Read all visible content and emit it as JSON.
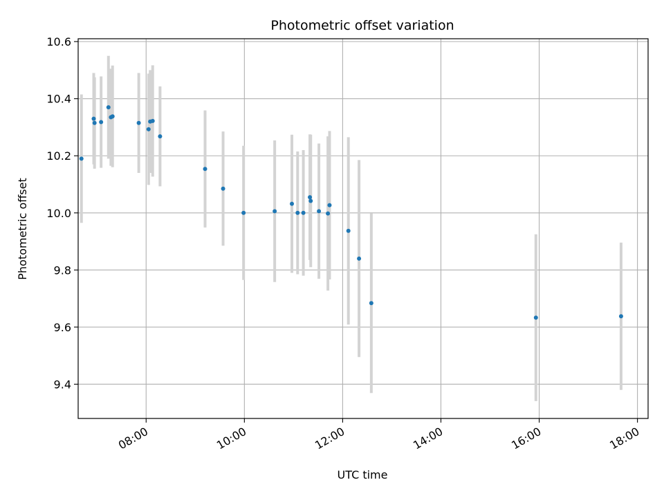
{
  "chart_data": {
    "type": "scatter",
    "title": "Photometric offset variation",
    "xlabel": "UTC time",
    "ylabel": "Photometric offset",
    "xlim": [
      "06:37",
      "18:13"
    ],
    "ylim": [
      9.28,
      10.61
    ],
    "x_ticks": [
      "08:00",
      "10:00",
      "12:00",
      "14:00",
      "16:00",
      "18:00"
    ],
    "y_ticks": [
      "9.4",
      "9.6",
      "9.8",
      "10.0",
      "10.2",
      "10.4",
      "10.6"
    ],
    "grid": true,
    "colors": {
      "point": "#1f77b4",
      "errorbar": "#d3d3d3",
      "grid": "#b0b0b0"
    },
    "points": [
      {
        "x": "06:41",
        "y": 10.19,
        "err": 0.225
      },
      {
        "x": "06:56",
        "y": 10.33,
        "err": 0.16
      },
      {
        "x": "06:57",
        "y": 10.315,
        "err": 0.16
      },
      {
        "x": "07:05",
        "y": 10.318,
        "err": 0.16
      },
      {
        "x": "07:14",
        "y": 10.37,
        "err": 0.18
      },
      {
        "x": "07:17",
        "y": 10.335,
        "err": 0.17
      },
      {
        "x": "07:19",
        "y": 10.338,
        "err": 0.178
      },
      {
        "x": "07:51",
        "y": 10.315,
        "err": 0.175
      },
      {
        "x": "08:03",
        "y": 10.293,
        "err": 0.195
      },
      {
        "x": "08:05",
        "y": 10.32,
        "err": 0.18
      },
      {
        "x": "08:08",
        "y": 10.322,
        "err": 0.195
      },
      {
        "x": "08:17",
        "y": 10.268,
        "err": 0.175
      },
      {
        "x": "09:12",
        "y": 10.154,
        "err": 0.205
      },
      {
        "x": "09:34",
        "y": 10.085,
        "err": 0.2
      },
      {
        "x": "09:59",
        "y": 10.0,
        "err": 0.235
      },
      {
        "x": "10:37",
        "y": 10.006,
        "err": 0.248
      },
      {
        "x": "10:58",
        "y": 10.032,
        "err": 0.242
      },
      {
        "x": "11:05",
        "y": 10.0,
        "err": 0.215
      },
      {
        "x": "11:12",
        "y": 10.0,
        "err": 0.22
      },
      {
        "x": "11:20",
        "y": 10.055,
        "err": 0.22
      },
      {
        "x": "11:21",
        "y": 10.042,
        "err": 0.232
      },
      {
        "x": "11:31",
        "y": 10.006,
        "err": 0.237
      },
      {
        "x": "11:42",
        "y": 9.998,
        "err": 0.27
      },
      {
        "x": "11:44",
        "y": 10.027,
        "err": 0.26
      },
      {
        "x": "12:07",
        "y": 9.937,
        "err": 0.328
      },
      {
        "x": "12:20",
        "y": 9.84,
        "err": 0.345
      },
      {
        "x": "12:35",
        "y": 9.684,
        "err": 0.315
      },
      {
        "x": "15:56",
        "y": 9.633,
        "err": 0.292
      },
      {
        "x": "17:40",
        "y": 9.638,
        "err": 0.258
      }
    ]
  }
}
